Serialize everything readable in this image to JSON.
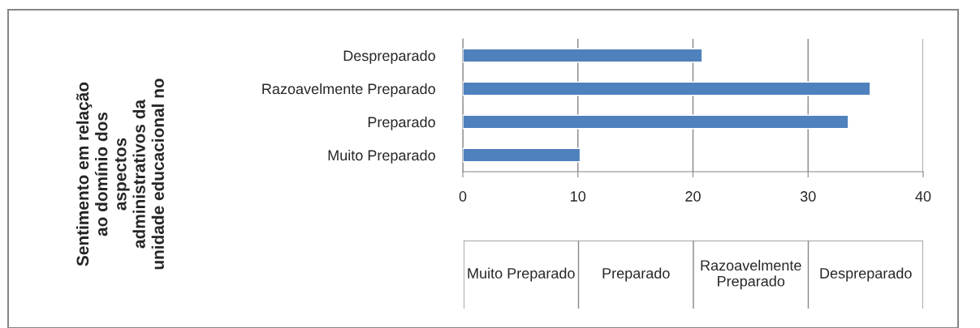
{
  "chart_data": {
    "type": "bar",
    "orientation": "horizontal",
    "title": "Sentimento em relação\nao domínio dos\naspectos\nadministrativos da\nunidade educacional no",
    "categories": [
      "Despreparado",
      "Razoavelmente Preparado",
      "Preparado",
      "Muito Preparado"
    ],
    "values": [
      20.8,
      35.4,
      33.5,
      10.2
    ],
    "color": "#4f81bd",
    "xlim": [
      0,
      40
    ],
    "xticks": [
      0,
      10,
      20,
      30,
      40
    ],
    "grid": "x",
    "legend": false,
    "annotations": [
      "Muito Preparado",
      "Preparado",
      "Razoavelmente\nPreparado",
      "Despreparado"
    ]
  }
}
